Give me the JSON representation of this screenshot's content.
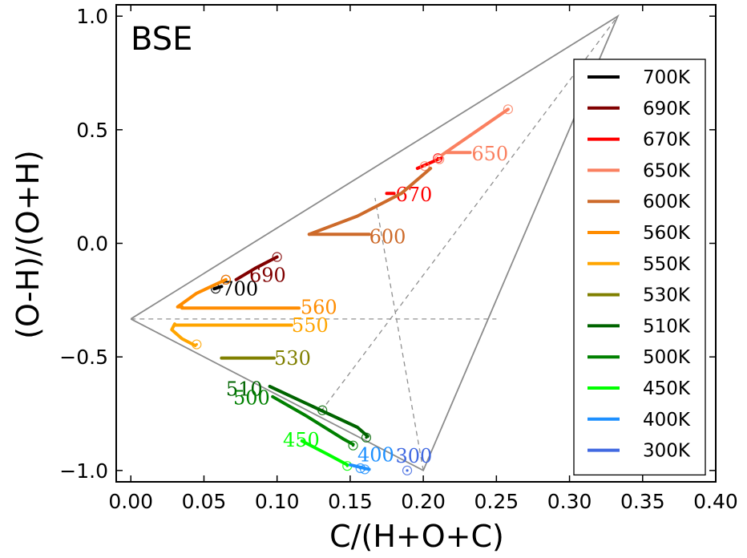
{
  "chart_data": {
    "type": "line",
    "title": "BSE",
    "xlabel": "C/(H+O+C)",
    "ylabel": "(O-H)/(O+H)",
    "xlim": [
      -0.01,
      0.4
    ],
    "ylim": [
      -1.05,
      1.05
    ],
    "xticks": [
      0.0,
      0.05,
      0.1,
      0.15,
      0.2,
      0.25,
      0.3,
      0.35,
      0.4
    ],
    "xtick_labels": [
      "0.00",
      "0.05",
      "0.10",
      "0.15",
      "0.20",
      "0.25",
      "0.30",
      "0.35",
      "0.40"
    ],
    "yticks": [
      -1.0,
      -0.5,
      0.0,
      0.5,
      1.0
    ],
    "ytick_labels": [
      "−1.0",
      "−0.5",
      "0.0",
      "0.5",
      "1.0"
    ],
    "legend_position": "right",
    "outline": [
      [
        0.0,
        -0.333
      ],
      [
        0.333,
        1.0
      ],
      [
        0.2,
        -1.0
      ],
      [
        0.0,
        -0.333
      ]
    ],
    "dashed_lines": [
      [
        [
          0.0,
          -0.333
        ],
        [
          0.25,
          -0.333
        ]
      ],
      [
        [
          0.2,
          -1.0
        ],
        [
          0.333,
          1.0
        ]
      ],
      [
        [
          0.13,
          -0.74
        ],
        [
          0.333,
          1.0
        ]
      ],
      [
        [
          0.2,
          -1.0
        ],
        [
          0.167,
          0.2
        ]
      ]
    ],
    "series": [
      {
        "name": "700K",
        "legend": "700K",
        "label": "700",
        "color": "#000000",
        "x": [
          0.057,
          0.062
        ],
        "y": [
          -0.2,
          -0.19
        ],
        "label_at": [
          0.062,
          -0.23
        ],
        "markers": [
          [
            0.058,
            -0.2
          ]
        ]
      },
      {
        "name": "690K",
        "legend": "690K",
        "label": "690",
        "color": "#800000",
        "x": [
          0.072,
          0.085,
          0.1
        ],
        "y": [
          -0.16,
          -0.11,
          -0.06
        ],
        "label_at": [
          0.081,
          -0.17
        ],
        "markers": [
          [
            0.1,
            -0.06
          ],
          [
            0.065,
            -0.16
          ]
        ]
      },
      {
        "name": "670K",
        "legend": "670K",
        "label": "670",
        "color": "#ff0000",
        "x": [
          0.196,
          0.212
        ],
        "y": [
          0.33,
          0.375
        ],
        "x2": [
          0.175,
          0.18
        ],
        "y2": [
          0.22,
          0.22
        ],
        "label_at": [
          0.181,
          0.185
        ],
        "markers": [
          [
            0.21,
            0.375
          ]
        ]
      },
      {
        "name": "650K",
        "legend": "650K",
        "label": "650",
        "color": "#fa8060",
        "x": [
          0.213,
          0.258
        ],
        "y": [
          0.39,
          0.59
        ],
        "x2": [
          0.216,
          0.232
        ],
        "y2": [
          0.4,
          0.4
        ],
        "label_at": [
          0.233,
          0.365
        ],
        "markers": [
          [
            0.258,
            0.59
          ],
          [
            0.201,
            0.34
          ],
          [
            0.211,
            0.37
          ]
        ]
      },
      {
        "name": "600K",
        "legend": "600K",
        "label": "600",
        "color": "#cd6a2a",
        "x": [
          0.122,
          0.155,
          0.185,
          0.205
        ],
        "y": [
          0.04,
          0.12,
          0.22,
          0.33
        ],
        "x2": [
          0.122,
          0.163
        ],
        "y2": [
          0.04,
          0.04
        ],
        "label_at": [
          0.163,
          0.0
        ],
        "markers": []
      },
      {
        "name": "560K",
        "legend": "560K",
        "label": "560",
        "color": "#ff8c00",
        "x": [
          0.035,
          0.032,
          0.045,
          0.065
        ],
        "y": [
          -0.28,
          -0.28,
          -0.22,
          -0.16
        ],
        "x2": [
          0.035,
          0.115
        ],
        "y2": [
          -0.285,
          -0.285
        ],
        "label_at": [
          0.116,
          -0.31
        ],
        "markers": [
          [
            0.065,
            -0.16
          ]
        ]
      },
      {
        "name": "550K",
        "legend": "550K",
        "label": "550",
        "color": "#ffa500",
        "x": [
          0.03,
          0.028,
          0.035,
          0.044
        ],
        "y": [
          -0.355,
          -0.38,
          -0.42,
          -0.45
        ],
        "x2": [
          0.03,
          0.11
        ],
        "y2": [
          -0.36,
          -0.36
        ],
        "label_at": [
          0.11,
          -0.39
        ],
        "markers": [
          [
            0.045,
            -0.445
          ]
        ]
      },
      {
        "name": "530K",
        "legend": "530K",
        "label": "530",
        "color": "#808000",
        "x": [
          0.062,
          0.098
        ],
        "y": [
          -0.505,
          -0.505
        ],
        "x2": [],
        "y2": [],
        "label_at": [
          0.098,
          -0.535
        ],
        "markers": []
      },
      {
        "name": "510K",
        "legend": "510K",
        "label": "510",
        "color": "#006400",
        "x": [
          0.095,
          0.125,
          0.155,
          0.162
        ],
        "y": [
          -0.63,
          -0.72,
          -0.81,
          -0.85
        ],
        "label_at": [
          0.065,
          -0.67
        ],
        "markers": [
          [
            0.161,
            -0.855
          ],
          [
            0.131,
            -0.735
          ]
        ]
      },
      {
        "name": "500K",
        "legend": "500K",
        "label": "500",
        "color": "#008000",
        "x": [
          0.097,
          0.12,
          0.145,
          0.152
        ],
        "y": [
          -0.675,
          -0.76,
          -0.86,
          -0.885
        ],
        "label_at": [
          0.07,
          -0.71
        ],
        "markers": [
          [
            0.152,
            -0.89
          ]
        ]
      },
      {
        "name": "450K",
        "legend": "450K",
        "label": "450",
        "color": "#00ff00",
        "x": [
          0.117,
          0.135,
          0.148
        ],
        "y": [
          -0.87,
          -0.93,
          -0.975
        ],
        "label_at": [
          0.104,
          -0.895
        ],
        "markers": [
          [
            0.148,
            -0.98
          ]
        ]
      },
      {
        "name": "400K",
        "legend": "400K",
        "label": "400",
        "color": "#1e90ff",
        "x": [
          0.15,
          0.163
        ],
        "y": [
          -0.975,
          -0.995
        ],
        "label_at": [
          0.155,
          -0.96
        ],
        "markers": [
          [
            0.16,
            -0.995
          ],
          [
            0.157,
            -0.99
          ]
        ]
      },
      {
        "name": "300K",
        "legend": "300K",
        "label": "300",
        "color": "#4169e1",
        "x": [],
        "y": [],
        "label_at": [
          0.181,
          -0.965
        ],
        "markers": [
          [
            0.189,
            -1.0
          ]
        ]
      }
    ]
  }
}
